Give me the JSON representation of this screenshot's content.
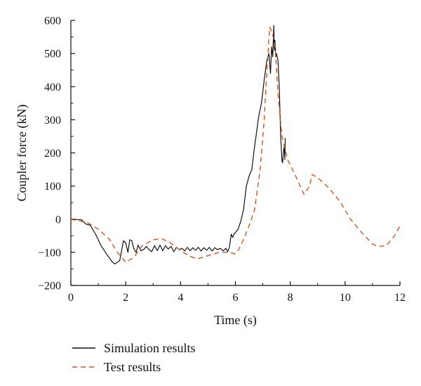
{
  "chart_data": {
    "type": "line",
    "xlabel": "Time (s)",
    "ylabel": "Coupler force (kN)",
    "xlim": [
      0,
      12
    ],
    "ylim": [
      -200,
      600
    ],
    "xticks": [
      0,
      2,
      4,
      6,
      8,
      10,
      12
    ],
    "yticks": [
      -200,
      -100,
      0,
      100,
      200,
      300,
      400,
      500,
      600
    ],
    "xtick_labels": [
      "0",
      "2",
      "4",
      "6",
      "8",
      "10",
      "12"
    ],
    "ytick_labels": [
      "−200",
      "−100",
      "0",
      "100",
      "200",
      "300",
      "400",
      "500",
      "600"
    ],
    "grid": false,
    "legend_position": "bottom-left, below plot",
    "series": [
      {
        "name": "Simulation results",
        "color": "#111111",
        "style": "solid",
        "x": [
          0.0,
          0.4,
          0.55,
          0.7,
          0.9,
          1.1,
          1.3,
          1.5,
          1.6,
          1.7,
          1.78,
          1.85,
          1.92,
          2.0,
          2.08,
          2.15,
          2.22,
          2.3,
          2.38,
          2.45,
          2.55,
          2.65,
          2.75,
          2.85,
          2.95,
          3.05,
          3.15,
          3.25,
          3.35,
          3.45,
          3.55,
          3.65,
          3.75,
          3.85,
          3.95,
          4.05,
          4.15,
          4.25,
          4.35,
          4.45,
          4.55,
          4.65,
          4.75,
          4.85,
          4.95,
          5.05,
          5.15,
          5.25,
          5.35,
          5.45,
          5.55,
          5.65,
          5.72,
          5.78,
          5.85,
          5.9,
          5.95,
          6.0,
          6.1,
          6.2,
          6.3,
          6.4,
          6.5,
          6.6,
          6.7,
          6.85,
          6.95,
          7.05,
          7.15,
          7.22,
          7.28,
          7.32,
          7.36,
          7.4,
          7.42,
          7.44,
          7.47,
          7.5,
          7.55,
          7.6,
          7.65,
          7.7,
          7.72,
          7.75,
          7.78,
          7.8,
          7.82
        ],
        "y": [
          0,
          -2,
          -15,
          -18,
          -45,
          -80,
          -105,
          -128,
          -135,
          -130,
          -125,
          -95,
          -65,
          -72,
          -100,
          -62,
          -65,
          -90,
          -100,
          -78,
          -95,
          -92,
          -82,
          -92,
          -98,
          -80,
          -95,
          -78,
          -95,
          -80,
          -90,
          -82,
          -98,
          -85,
          -92,
          -88,
          -96,
          -85,
          -95,
          -86,
          -94,
          -85,
          -96,
          -86,
          -94,
          -85,
          -96,
          -86,
          -92,
          -88,
          -96,
          -88,
          -98,
          -85,
          -45,
          -55,
          -45,
          -40,
          -30,
          -5,
          30,
          100,
          130,
          150,
          220,
          310,
          350,
          420,
          480,
          500,
          440,
          520,
          490,
          585,
          510,
          540,
          490,
          500,
          480,
          400,
          250,
          175,
          170,
          200,
          220,
          180,
          245
        ]
      },
      {
        "name": "Test results",
        "color": "#d4541e",
        "style": "dashed",
        "x": [
          0.0,
          0.3,
          0.6,
          1.0,
          1.4,
          1.7,
          2.0,
          2.3,
          2.6,
          3.0,
          3.3,
          3.6,
          4.0,
          4.3,
          4.6,
          5.0,
          5.4,
          5.8,
          6.0,
          6.1,
          6.3,
          6.5,
          6.7,
          6.9,
          7.05,
          7.15,
          7.25,
          7.35,
          7.45,
          7.55,
          7.7,
          7.9,
          8.2,
          8.5,
          8.7,
          8.8,
          9.0,
          9.4,
          9.8,
          10.2,
          10.6,
          11.0,
          11.2,
          11.5,
          11.8,
          12.0
        ],
        "y": [
          0,
          -5,
          -10,
          -30,
          -60,
          -100,
          -130,
          -115,
          -80,
          -62,
          -58,
          -70,
          -95,
          -110,
          -120,
          -110,
          -100,
          -100,
          -105,
          -95,
          -60,
          -20,
          30,
          150,
          300,
          450,
          580,
          560,
          520,
          380,
          250,
          180,
          130,
          75,
          100,
          135,
          125,
          95,
          55,
          0,
          -40,
          -75,
          -82,
          -80,
          -50,
          -20
        ]
      }
    ]
  }
}
